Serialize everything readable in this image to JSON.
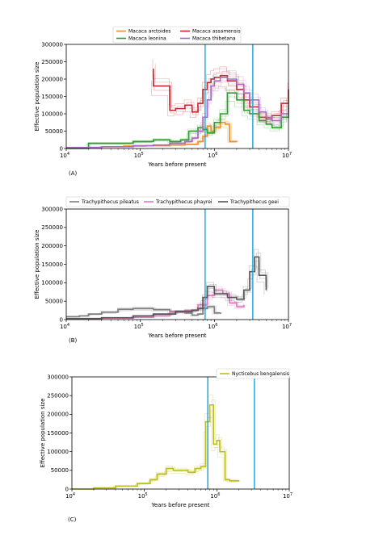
{
  "chart_data": [
    {
      "type": "line",
      "panel_label": "(A)",
      "xlabel": "Years before present",
      "ylabel": "Effective population size",
      "xscale": "log",
      "xlim": [
        10000,
        10000000
      ],
      "ylim": [
        0,
        300000
      ],
      "xticks": [
        {
          "v": 10000,
          "base": "10",
          "exp": "4"
        },
        {
          "v": 100000,
          "base": "10",
          "exp": "5"
        },
        {
          "v": 1000000,
          "base": "10",
          "exp": "6"
        },
        {
          "v": 10000000,
          "base": "10",
          "exp": "7"
        }
      ],
      "yticks": [
        {
          "v": 0,
          "label": "0"
        },
        {
          "v": 50000,
          "label": "50000"
        },
        {
          "v": 100000,
          "label": "100000"
        },
        {
          "v": 150000,
          "label": "150000"
        },
        {
          "v": 200000,
          "label": "200000"
        },
        {
          "v": 250000,
          "label": "250000"
        },
        {
          "v": 300000,
          "label": "300000"
        }
      ],
      "vlines": [
        750000,
        3300000
      ],
      "vline_color": "#1ba3d6",
      "legend_position": "top",
      "series": [
        {
          "name": "Macaca arctoides",
          "color": "#f28e2b",
          "x": [
            20000,
            30000,
            60000,
            120000,
            250000,
            400000,
            600000,
            700000,
            800000,
            900000,
            1000000,
            1200000,
            1400000,
            1600000,
            2000000
          ],
          "y": [
            3000,
            5000,
            7000,
            8000,
            10000,
            12000,
            20000,
            35000,
            65000,
            50000,
            60000,
            75000,
            70000,
            20000,
            18000
          ]
        },
        {
          "name": "Macaca assamensis",
          "color": "#c62830",
          "x": [
            150000,
            150000,
            250000,
            300000,
            400000,
            500000,
            600000,
            700000,
            800000,
            900000,
            1000000,
            1200000,
            1500000,
            2000000,
            2500000,
            3000000,
            4000000,
            5000000,
            6000000,
            8000000,
            10000000
          ],
          "y": [
            230000,
            180000,
            110000,
            115000,
            125000,
            105000,
            130000,
            170000,
            190000,
            200000,
            205000,
            210000,
            195000,
            170000,
            140000,
            120000,
            90000,
            85000,
            95000,
            130000,
            170000
          ]
        },
        {
          "name": "Macaca leonina",
          "color": "#2ca02c",
          "x": [
            10000,
            20000,
            20000,
            40000,
            80000,
            150000,
            250000,
            350000,
            450000,
            600000,
            700000,
            800000,
            1000000,
            1200000,
            1500000,
            2000000,
            2500000,
            3000000,
            4000000,
            5000000,
            6000000,
            8000000,
            10000000
          ],
          "y": [
            0,
            5000,
            15000,
            15000,
            20000,
            25000,
            20000,
            25000,
            50000,
            60000,
            55000,
            45000,
            75000,
            100000,
            160000,
            140000,
            110000,
            100000,
            80000,
            70000,
            60000,
            90000,
            130000
          ]
        },
        {
          "name": "Macaca thibetana",
          "color": "#a66bbe",
          "x": [
            10000,
            30000,
            80000,
            150000,
            250000,
            400000,
            500000,
            600000,
            700000,
            800000,
            900000,
            1000000,
            1200000,
            1500000,
            2000000,
            2500000,
            3000000,
            4000000,
            5000000,
            6000000,
            8000000,
            10000000
          ],
          "y": [
            3000,
            5000,
            8000,
            10000,
            15000,
            20000,
            30000,
            50000,
            90000,
            140000,
            180000,
            195000,
            205000,
            200000,
            185000,
            160000,
            140000,
            105000,
            90000,
            80000,
            100000,
            120000
          ]
        }
      ]
    },
    {
      "type": "line",
      "panel_label": "(B)",
      "xlabel": "Years before present",
      "ylabel": "Effective population size",
      "xscale": "log",
      "xlim": [
        10000,
        10000000
      ],
      "ylim": [
        0,
        300000
      ],
      "xticks": [
        {
          "v": 10000,
          "base": "10",
          "exp": "4"
        },
        {
          "v": 100000,
          "base": "10",
          "exp": "5"
        },
        {
          "v": 1000000,
          "base": "10",
          "exp": "6"
        },
        {
          "v": 10000000,
          "base": "10",
          "exp": "7"
        }
      ],
      "yticks": [
        {
          "v": 0,
          "label": "0"
        },
        {
          "v": 50000,
          "label": "50000"
        },
        {
          "v": 100000,
          "label": "100000"
        },
        {
          "v": 150000,
          "label": "150000"
        },
        {
          "v": 200000,
          "label": "200000"
        },
        {
          "v": 250000,
          "label": "250000"
        },
        {
          "v": 300000,
          "label": "300000"
        }
      ],
      "vlines": [
        750000,
        3300000
      ],
      "vline_color": "#1ba3d6",
      "legend_position": "top",
      "series": [
        {
          "name": "Trachypithecus pileatus",
          "color": "#7f7f7f",
          "x": [
            10000,
            15000,
            20000,
            30000,
            50000,
            80000,
            150000,
            250000,
            400000,
            500000,
            600000,
            700000,
            800000,
            1000000,
            1200000
          ],
          "y": [
            8000,
            10000,
            15000,
            20000,
            28000,
            30000,
            27000,
            22000,
            18000,
            12000,
            15000,
            30000,
            35000,
            18000,
            15000
          ]
        },
        {
          "name": "Trachypithecus phayrei",
          "color": "#e377c2",
          "x": [
            10000,
            30000,
            80000,
            150000,
            250000,
            400000,
            600000,
            800000,
            1000000,
            1300000,
            1600000,
            2000000,
            2500000
          ],
          "y": [
            2000,
            4000,
            6000,
            10000,
            20000,
            25000,
            40000,
            65000,
            80000,
            70000,
            45000,
            35000,
            40000
          ]
        },
        {
          "name": "Trachypithecus geei",
          "color": "#555555",
          "x": [
            10000,
            30000,
            80000,
            150000,
            300000,
            500000,
            600000,
            700000,
            800000,
            1000000,
            1500000,
            2000000,
            2500000,
            3000000,
            3500000,
            4000000,
            5000000
          ],
          "y": [
            3000,
            5000,
            10000,
            15000,
            22000,
            25000,
            30000,
            60000,
            90000,
            70000,
            60000,
            55000,
            80000,
            130000,
            170000,
            120000,
            80000
          ]
        }
      ]
    },
    {
      "type": "line",
      "panel_label": "(C)",
      "xlabel": "Years before present",
      "ylabel": "Effective population size",
      "xscale": "log",
      "xlim": [
        10000,
        10000000
      ],
      "ylim": [
        0,
        300000
      ],
      "xticks": [
        {
          "v": 10000,
          "base": "10",
          "exp": "4"
        },
        {
          "v": 100000,
          "base": "10",
          "exp": "5"
        },
        {
          "v": 1000000,
          "base": "10",
          "exp": "6"
        },
        {
          "v": 10000000,
          "base": "10",
          "exp": "7"
        }
      ],
      "yticks": [
        {
          "v": 0,
          "label": "0"
        },
        {
          "v": 50000,
          "label": "50000"
        },
        {
          "v": 100000,
          "label": "100000"
        },
        {
          "v": 150000,
          "label": "150000"
        },
        {
          "v": 200000,
          "label": "200000"
        },
        {
          "v": 250000,
          "label": "250000"
        },
        {
          "v": 300000,
          "label": "300000"
        }
      ],
      "vlines": [
        750000,
        3300000
      ],
      "vline_color": "#1ba3d6",
      "legend_position": "top-right",
      "series": [
        {
          "name": "Nycticebus bengalensis",
          "color": "#bcbd22",
          "x": [
            10000,
            20000,
            40000,
            80000,
            120000,
            150000,
            200000,
            250000,
            300000,
            400000,
            500000,
            600000,
            700000,
            800000,
            900000,
            1000000,
            1100000,
            1300000,
            1500000,
            2000000
          ],
          "y": [
            0,
            3000,
            8000,
            15000,
            25000,
            40000,
            55000,
            50000,
            50000,
            45000,
            55000,
            60000,
            180000,
            225000,
            120000,
            130000,
            100000,
            25000,
            22000,
            20000
          ]
        }
      ]
    }
  ]
}
